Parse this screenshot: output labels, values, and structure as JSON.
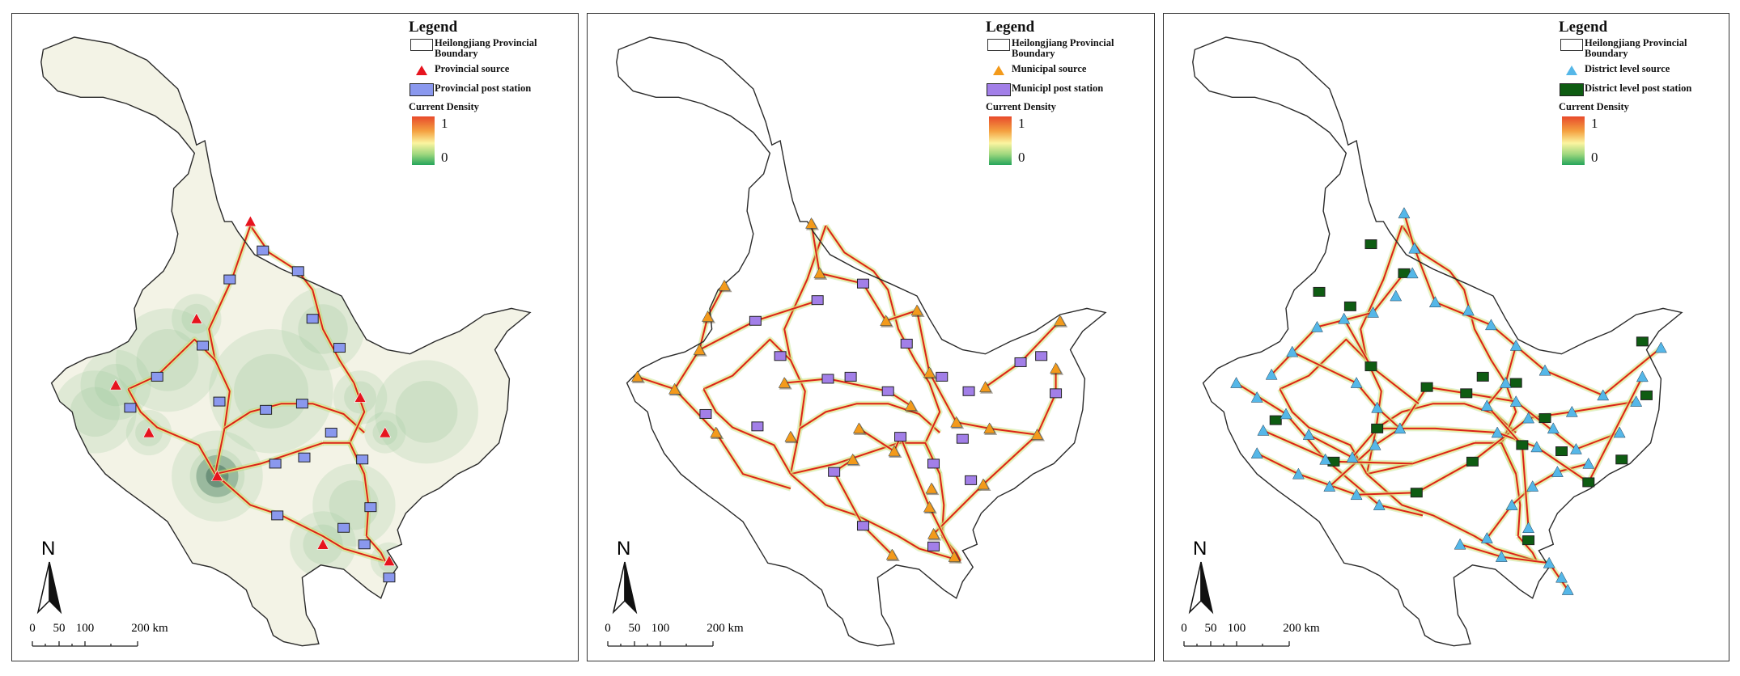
{
  "panels": [
    {
      "id": "provincial",
      "legend": {
        "title": "Legend",
        "boundary_label": "Heilongjiang Provincial Boundary",
        "source_label": "Provincial source",
        "station_label": "Provincial post station",
        "density_title": "Current Density",
        "ramp_max": "1",
        "ramp_min": "0"
      },
      "source_color": "#e6141e",
      "station_color": "#8a98ee",
      "background_fill": "#f3f3e6"
    },
    {
      "id": "municipal",
      "legend": {
        "title": "Legend",
        "boundary_label": "Heilongjiang Provincial Boundary",
        "source_label": "Municipal source",
        "station_label": "Municipl post station",
        "density_title": "Current Density",
        "ramp_max": "1",
        "ramp_min": "0"
      },
      "source_color": "#f39a1b",
      "station_color": "#a27fe8",
      "background_fill": "#ffffff"
    },
    {
      "id": "district",
      "legend": {
        "title": "Legend",
        "boundary_label": "Heilongjiang Provincial Boundary",
        "source_label": "District level source",
        "station_label": "District level post station",
        "density_title": "Current Density",
        "ramp_max": "1",
        "ramp_min": "0"
      },
      "source_color": "#55b7e8",
      "station_color": "#0e5c12",
      "background_fill": "#ffffff"
    }
  ],
  "north_arrow": "N",
  "scale": {
    "ticks": [
      "0",
      "50",
      "100",
      "200 km"
    ]
  },
  "colors": {
    "corridor_red": "#d8231c",
    "corridor_yellow": "#f7e67a",
    "corridor_green": "#a7d86e",
    "density_green": "#9bc79a"
  }
}
